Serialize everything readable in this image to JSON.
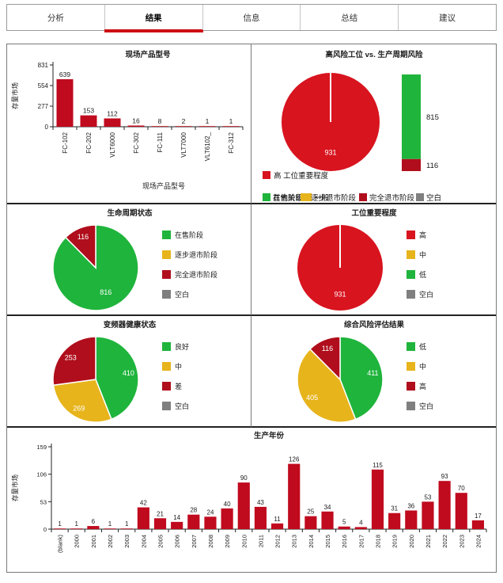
{
  "tabs": [
    {
      "label": "分析",
      "active": false
    },
    {
      "label": "结果",
      "active": true
    },
    {
      "label": "信息",
      "active": false
    },
    {
      "label": "总结",
      "active": false
    },
    {
      "label": "建议",
      "active": false
    }
  ],
  "colors": {
    "bar_red": "#c00a1e",
    "bright_red": "#d8141f",
    "dark_red": "#b00e1c",
    "green": "#1fb43c",
    "yellow": "#e7b41c",
    "gray": "#7f7f7f",
    "tab_underline": "#cc0e12",
    "axis": "#222222",
    "text": "#1a1a1a"
  },
  "chart_data": [
    {
      "id": "product_models",
      "type": "bar",
      "title": "现场产品型号",
      "xlabel": "现场产品型号",
      "ylabel": "存量市场",
      "ylim": [
        0,
        831
      ],
      "yticks": [
        0,
        277,
        554,
        831
      ],
      "categories": [
        "FC-102",
        "FC-202",
        "VLT6000",
        "FC-302",
        "FC-111",
        "VLT7000",
        "VLT6102_",
        "FC-312"
      ],
      "values": [
        639,
        153,
        112,
        16,
        8,
        2,
        1,
        1
      ],
      "bar_color": "bar_red",
      "grid": false
    },
    {
      "id": "risk_vs_cycle",
      "type": "pie_stacked",
      "title": "高风险工位 vs. 生产周期风险",
      "pie": {
        "slices": [
          {
            "label": "高",
            "value": 931,
            "color": "bright_red",
            "data_label": "931"
          }
        ]
      },
      "stacked_bar": {
        "segments": [
          {
            "label": "815",
            "value": 815,
            "color": "green"
          },
          {
            "label": "116",
            "value": 116,
            "color": "dark_red"
          }
        ]
      },
      "legend_row1": [
        {
          "color": "bright_red",
          "label": "高 工位重要程度"
        }
      ],
      "legend_overlap_under": [
        {
          "color": "green",
          "label": "其他关键"
        },
        {
          "color": "yellow",
          "label": "一般"
        }
      ],
      "legend_overlap_over": [
        {
          "color": "green",
          "label": "在售阶段"
        },
        {
          "color": "yellow",
          "label": "逐步退市阶段"
        },
        {
          "color": "dark_red",
          "label": "完全退市阶段"
        },
        {
          "color": "gray",
          "label": "空白"
        }
      ]
    },
    {
      "id": "lifecycle",
      "type": "pie",
      "title": "生命周期状态",
      "slices": [
        {
          "label": "在售阶段",
          "value": 816,
          "color": "green",
          "data_label": "816"
        },
        {
          "label": "完全退市阶段",
          "value": 116,
          "color": "dark_red",
          "data_label": "116"
        }
      ],
      "legend": [
        {
          "color": "green",
          "label": "在售阶段"
        },
        {
          "color": "yellow",
          "label": "逐步退市阶段"
        },
        {
          "color": "dark_red",
          "label": "完全退市阶段"
        },
        {
          "color": "gray",
          "label": "空白"
        }
      ]
    },
    {
      "id": "importance",
      "type": "pie",
      "title": "工位重要程度",
      "slices": [
        {
          "label": "高",
          "value": 931,
          "color": "bright_red",
          "data_label": "931"
        }
      ],
      "legend": [
        {
          "color": "bright_red",
          "label": "高"
        },
        {
          "color": "yellow",
          "label": "中"
        },
        {
          "color": "green",
          "label": "低"
        },
        {
          "color": "gray",
          "label": "空白"
        }
      ]
    },
    {
      "id": "health",
      "type": "pie",
      "title": "变频器健康状态",
      "slices": [
        {
          "label": "良好",
          "value": 410,
          "color": "green",
          "data_label": "410"
        },
        {
          "label": "中",
          "value": 269,
          "color": "yellow",
          "data_label": "269"
        },
        {
          "label": "差",
          "value": 253,
          "color": "dark_red",
          "data_label": "253"
        }
      ],
      "legend": [
        {
          "color": "green",
          "label": "良好"
        },
        {
          "color": "yellow",
          "label": "中"
        },
        {
          "color": "dark_red",
          "label": "差"
        },
        {
          "color": "gray",
          "label": "空白"
        }
      ]
    },
    {
      "id": "assessment",
      "type": "pie",
      "title": "综合风险评估结果",
      "slices": [
        {
          "label": "低",
          "value": 411,
          "color": "green",
          "data_label": "411"
        },
        {
          "label": "中",
          "value": 405,
          "color": "yellow",
          "data_label": "405"
        },
        {
          "label": "高",
          "value": 116,
          "color": "dark_red",
          "data_label": "116"
        }
      ],
      "legend": [
        {
          "color": "green",
          "label": "低"
        },
        {
          "color": "yellow",
          "label": "中"
        },
        {
          "color": "dark_red",
          "label": "高"
        },
        {
          "color": "gray",
          "label": "空白"
        }
      ]
    },
    {
      "id": "production_year",
      "type": "bar",
      "title": "生产年份",
      "xlabel": "",
      "ylabel": "存量市场",
      "ylim": [
        0,
        159
      ],
      "yticks": [
        0,
        53,
        106,
        159
      ],
      "categories": [
        "(blank)",
        "2000",
        "2001",
        "2002",
        "2003",
        "2004",
        "2005",
        "2006",
        "2007",
        "2008",
        "2009",
        "2010",
        "2011",
        "2012",
        "2013",
        "2014",
        "2015",
        "2016",
        "2017",
        "2018",
        "2019",
        "2020",
        "2021",
        "2022",
        "2023",
        "2024"
      ],
      "values": [
        1,
        1,
        6,
        1,
        1,
        42,
        21,
        14,
        28,
        24,
        40,
        90,
        43,
        11,
        126,
        25,
        34,
        5,
        4,
        115,
        31,
        36,
        53,
        93,
        70,
        17
      ],
      "bar_color": "bar_red",
      "grid": false
    }
  ]
}
